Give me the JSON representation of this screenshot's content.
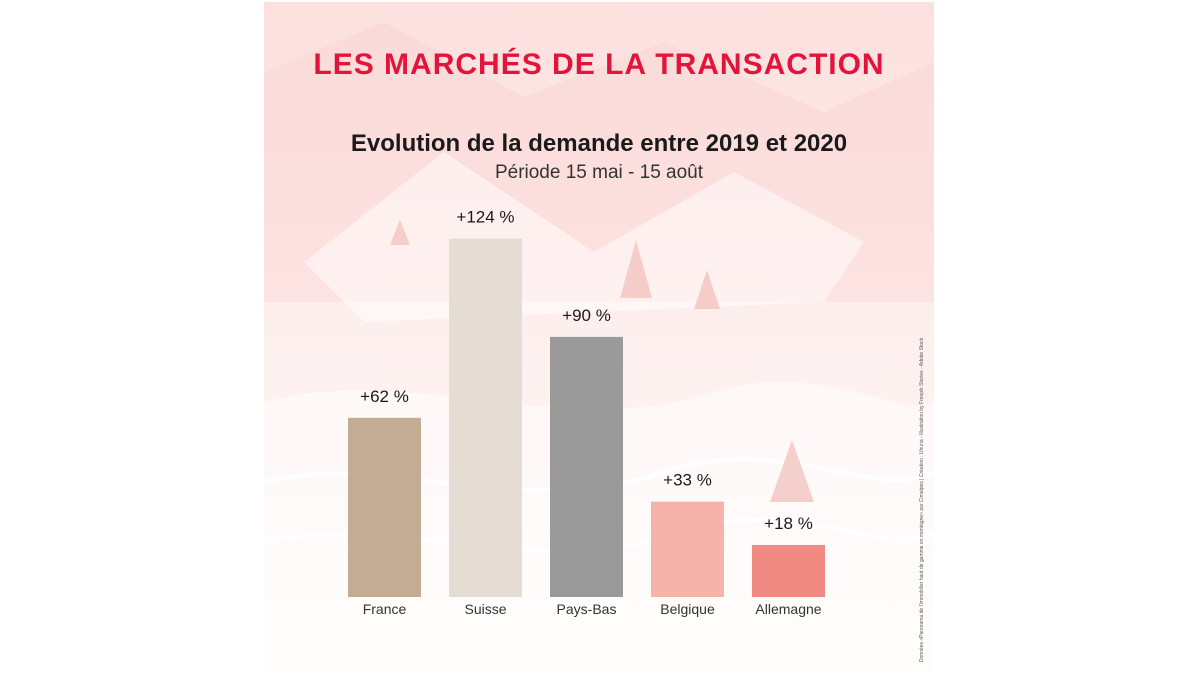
{
  "header": {
    "title": "LES MARCHÉS DE LA TRANSACTION",
    "subtitle": "Evolution de la demande entre 2019 et 2020",
    "period": "Période 15 mai - 15 août"
  },
  "credit": "Données «Panorama de l'immobilier haut de gamme en montagne» par Cimalpes | Création : Uhuria - Illustration by Freepik Stories - Adobe Stock",
  "chart_data": {
    "type": "bar",
    "title": "Evolution de la demande entre 2019 et 2020",
    "subtitle": "Période 15 mai - 15 août",
    "categories": [
      "France",
      "Suisse",
      "Pays-Bas",
      "Belgique",
      "Allemagne"
    ],
    "values": [
      62,
      124,
      90,
      33,
      18
    ],
    "value_labels": [
      "+62 %",
      "+124 %",
      "+90 %",
      "+33 %",
      "+18 %"
    ],
    "colors": [
      "#c4ab94",
      "#e5ddd4",
      "#9a9a9a",
      "#f5b3aa",
      "#f08a82"
    ],
    "grid": false,
    "legend": "none"
  }
}
